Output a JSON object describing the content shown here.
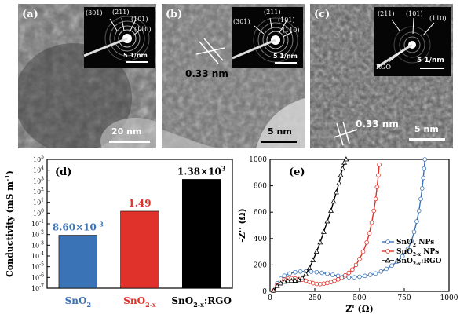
{
  "panels": {
    "a": {
      "label": "(a)",
      "scale": "20 nm",
      "inset": {
        "rings": [
          "(301)",
          "(211)",
          "(101)",
          "(110)"
        ],
        "scale": "5 1/nm"
      }
    },
    "b": {
      "label": "(b)",
      "scale": "5 nm",
      "spacing": "0.33 nm",
      "inset": {
        "rings": [
          "(301)",
          "(211)",
          "(101)",
          "(110)"
        ],
        "scale": "5 1/nm"
      }
    },
    "c": {
      "label": "(c)",
      "scale": "5 nm",
      "spacing": "0.33 nm",
      "inset": {
        "rings": [
          "(211)",
          "(101)",
          "(110)"
        ],
        "extra": "RGO",
        "scale": "5 1/nm"
      }
    }
  },
  "chart_data": [
    {
      "panel": "(d)",
      "type": "bar",
      "ylabel": "Conductivity (mS m",
      "ylabel_sup": "-1",
      "ylabel_end": ")",
      "yscale": "log",
      "ylim": [
        1e-07,
        100000.0
      ],
      "yticks": [
        {
          "exp": "-7",
          "v": 1e-07
        },
        {
          "exp": "-6",
          "v": 1e-06
        },
        {
          "exp": "-5",
          "v": 1e-05
        },
        {
          "exp": "-4",
          "v": 0.0001
        },
        {
          "exp": "-3",
          "v": 0.001
        },
        {
          "exp": "-2",
          "v": 0.01
        },
        {
          "exp": "-1",
          "v": 0.1
        },
        {
          "exp": "0",
          "v": 1
        },
        {
          "exp": "1",
          "v": 10
        },
        {
          "exp": "2",
          "v": 100
        },
        {
          "exp": "3",
          "v": 1000
        },
        {
          "exp": "4",
          "v": 10000
        },
        {
          "exp": "5",
          "v": 100000
        }
      ],
      "categories": [
        {
          "main": "SnO",
          "sub": "2",
          "tail": "",
          "color": "#3a73b6"
        },
        {
          "main": "SnO",
          "sub": "2-x",
          "tail": "",
          "color": "#e0322a"
        },
        {
          "main": "SnO",
          "sub": "2-x",
          "tail": ":RGO",
          "color": "#000000"
        }
      ],
      "values": [
        0.0086,
        1.49,
        1380
      ],
      "data_labels": [
        {
          "text": "8.60×10",
          "sup": "-3",
          "color": "#3a73b6"
        },
        {
          "text": "1.49",
          "sup": "",
          "color": "#e0322a"
        },
        {
          "text": "1.38×10",
          "sup": "3",
          "color": "#000000"
        }
      ]
    },
    {
      "panel": "(e)",
      "type": "line",
      "xlabel": "Z' (Ω)",
      "ylabel": "-Z'' (Ω)",
      "xlim": [
        0,
        1000
      ],
      "ylim": [
        0,
        1000
      ],
      "xticks": [
        0,
        250,
        500,
        750,
        1000
      ],
      "yticks": [
        0,
        200,
        400,
        600,
        800,
        1000
      ],
      "legend_position": "lower-right",
      "series": [
        {
          "name": "SnO",
          "name_sub": "2",
          "name_tail": " NPs",
          "color": "#3a73b6",
          "marker": "circle",
          "x": [
            20,
            40,
            60,
            80,
            110,
            140,
            170,
            200,
            230,
            260,
            290,
            320,
            350,
            380,
            410,
            440,
            470,
            500,
            530,
            560,
            590,
            620,
            650,
            680,
            710,
            740,
            770,
            790,
            805,
            820,
            832,
            842,
            850,
            856,
            861,
            865
          ],
          "y": [
            5,
            60,
            95,
            118,
            135,
            145,
            150,
            151,
            149,
            145,
            140,
            133,
            125,
            117,
            110,
            106,
            106,
            110,
            117,
            125,
            135,
            150,
            170,
            195,
            225,
            265,
            320,
            380,
            450,
            530,
            610,
            700,
            780,
            860,
            930,
            1000
          ]
        },
        {
          "name": "SnO",
          "name_sub": "2-x",
          "name_tail": " NPs",
          "color": "#e0322a",
          "marker": "circle",
          "x": [
            20,
            40,
            60,
            80,
            100,
            120,
            140,
            160,
            180,
            200,
            220,
            240,
            260,
            280,
            300,
            320,
            340,
            360,
            380,
            400,
            420,
            440,
            460,
            480,
            500,
            520,
            540,
            555,
            568,
            580,
            590,
            598,
            605,
            610
          ],
          "y": [
            5,
            45,
            72,
            88,
            96,
            99,
            97,
            93,
            88,
            80,
            71,
            62,
            56,
            55,
            58,
            63,
            70,
            80,
            90,
            103,
            120,
            140,
            165,
            200,
            245,
            300,
            370,
            440,
            520,
            610,
            700,
            790,
            880,
            960
          ]
        },
        {
          "name": "SnO",
          "name_sub": "2-x",
          "name_tail": ":RGO",
          "color": "#000000",
          "marker": "triangle",
          "x": [
            20,
            40,
            60,
            80,
            100,
            120,
            140,
            160,
            180,
            200,
            220,
            240,
            260,
            280,
            300,
            320,
            340,
            355,
            370,
            385,
            395,
            405,
            415,
            425
          ],
          "y": [
            5,
            40,
            60,
            72,
            78,
            79,
            80,
            85,
            100,
            130,
            175,
            235,
            300,
            370,
            450,
            530,
            610,
            680,
            750,
            820,
            880,
            930,
            975,
            1000
          ]
        }
      ]
    }
  ]
}
